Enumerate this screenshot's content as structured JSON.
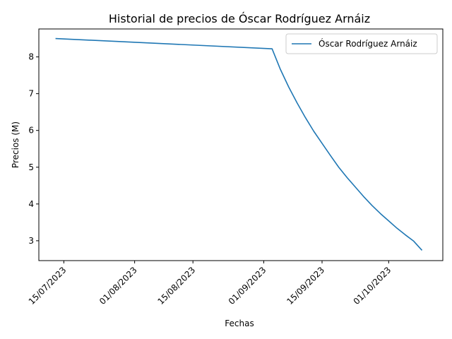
{
  "chart_data": {
    "type": "line",
    "title": "Historial de precios de Óscar Rodríguez Arnáiz",
    "xlabel": "Fechas",
    "ylabel": "Precios (M)",
    "x_tick_labels": [
      "15/07/2023",
      "01/08/2023",
      "15/08/2023",
      "01/09/2023",
      "15/09/2023",
      "01/10/2023"
    ],
    "x_tick_dates": [
      "2023-07-15",
      "2023-08-01",
      "2023-08-15",
      "2023-09-01",
      "2023-09-15",
      "2023-10-01"
    ],
    "y_ticks": [
      3,
      4,
      5,
      6,
      7,
      8
    ],
    "xlim": [
      "2023-07-09",
      "2023-10-14"
    ],
    "ylim": [
      2.46,
      8.76
    ],
    "legend_position": "upper-right",
    "grid": false,
    "series": [
      {
        "name": "Óscar Rodríguez Arnáiz",
        "color": "#1f77b4",
        "points": [
          [
            "2023-07-13",
            8.5
          ],
          [
            "2023-09-03",
            8.22
          ],
          [
            "2023-09-05",
            7.66
          ],
          [
            "2023-09-07",
            7.18
          ],
          [
            "2023-09-09",
            6.75
          ],
          [
            "2023-09-11",
            6.35
          ],
          [
            "2023-09-13",
            5.98
          ],
          [
            "2023-09-15",
            5.65
          ],
          [
            "2023-09-17",
            5.32
          ],
          [
            "2023-09-19",
            5.0
          ],
          [
            "2023-09-21",
            4.72
          ],
          [
            "2023-09-23",
            4.46
          ],
          [
            "2023-09-25",
            4.2
          ],
          [
            "2023-09-27",
            3.96
          ],
          [
            "2023-09-29",
            3.74
          ],
          [
            "2023-10-01",
            3.54
          ],
          [
            "2023-10-03",
            3.34
          ],
          [
            "2023-10-05",
            3.16
          ],
          [
            "2023-10-07",
            2.99
          ],
          [
            "2023-10-09",
            2.74
          ]
        ]
      }
    ]
  }
}
